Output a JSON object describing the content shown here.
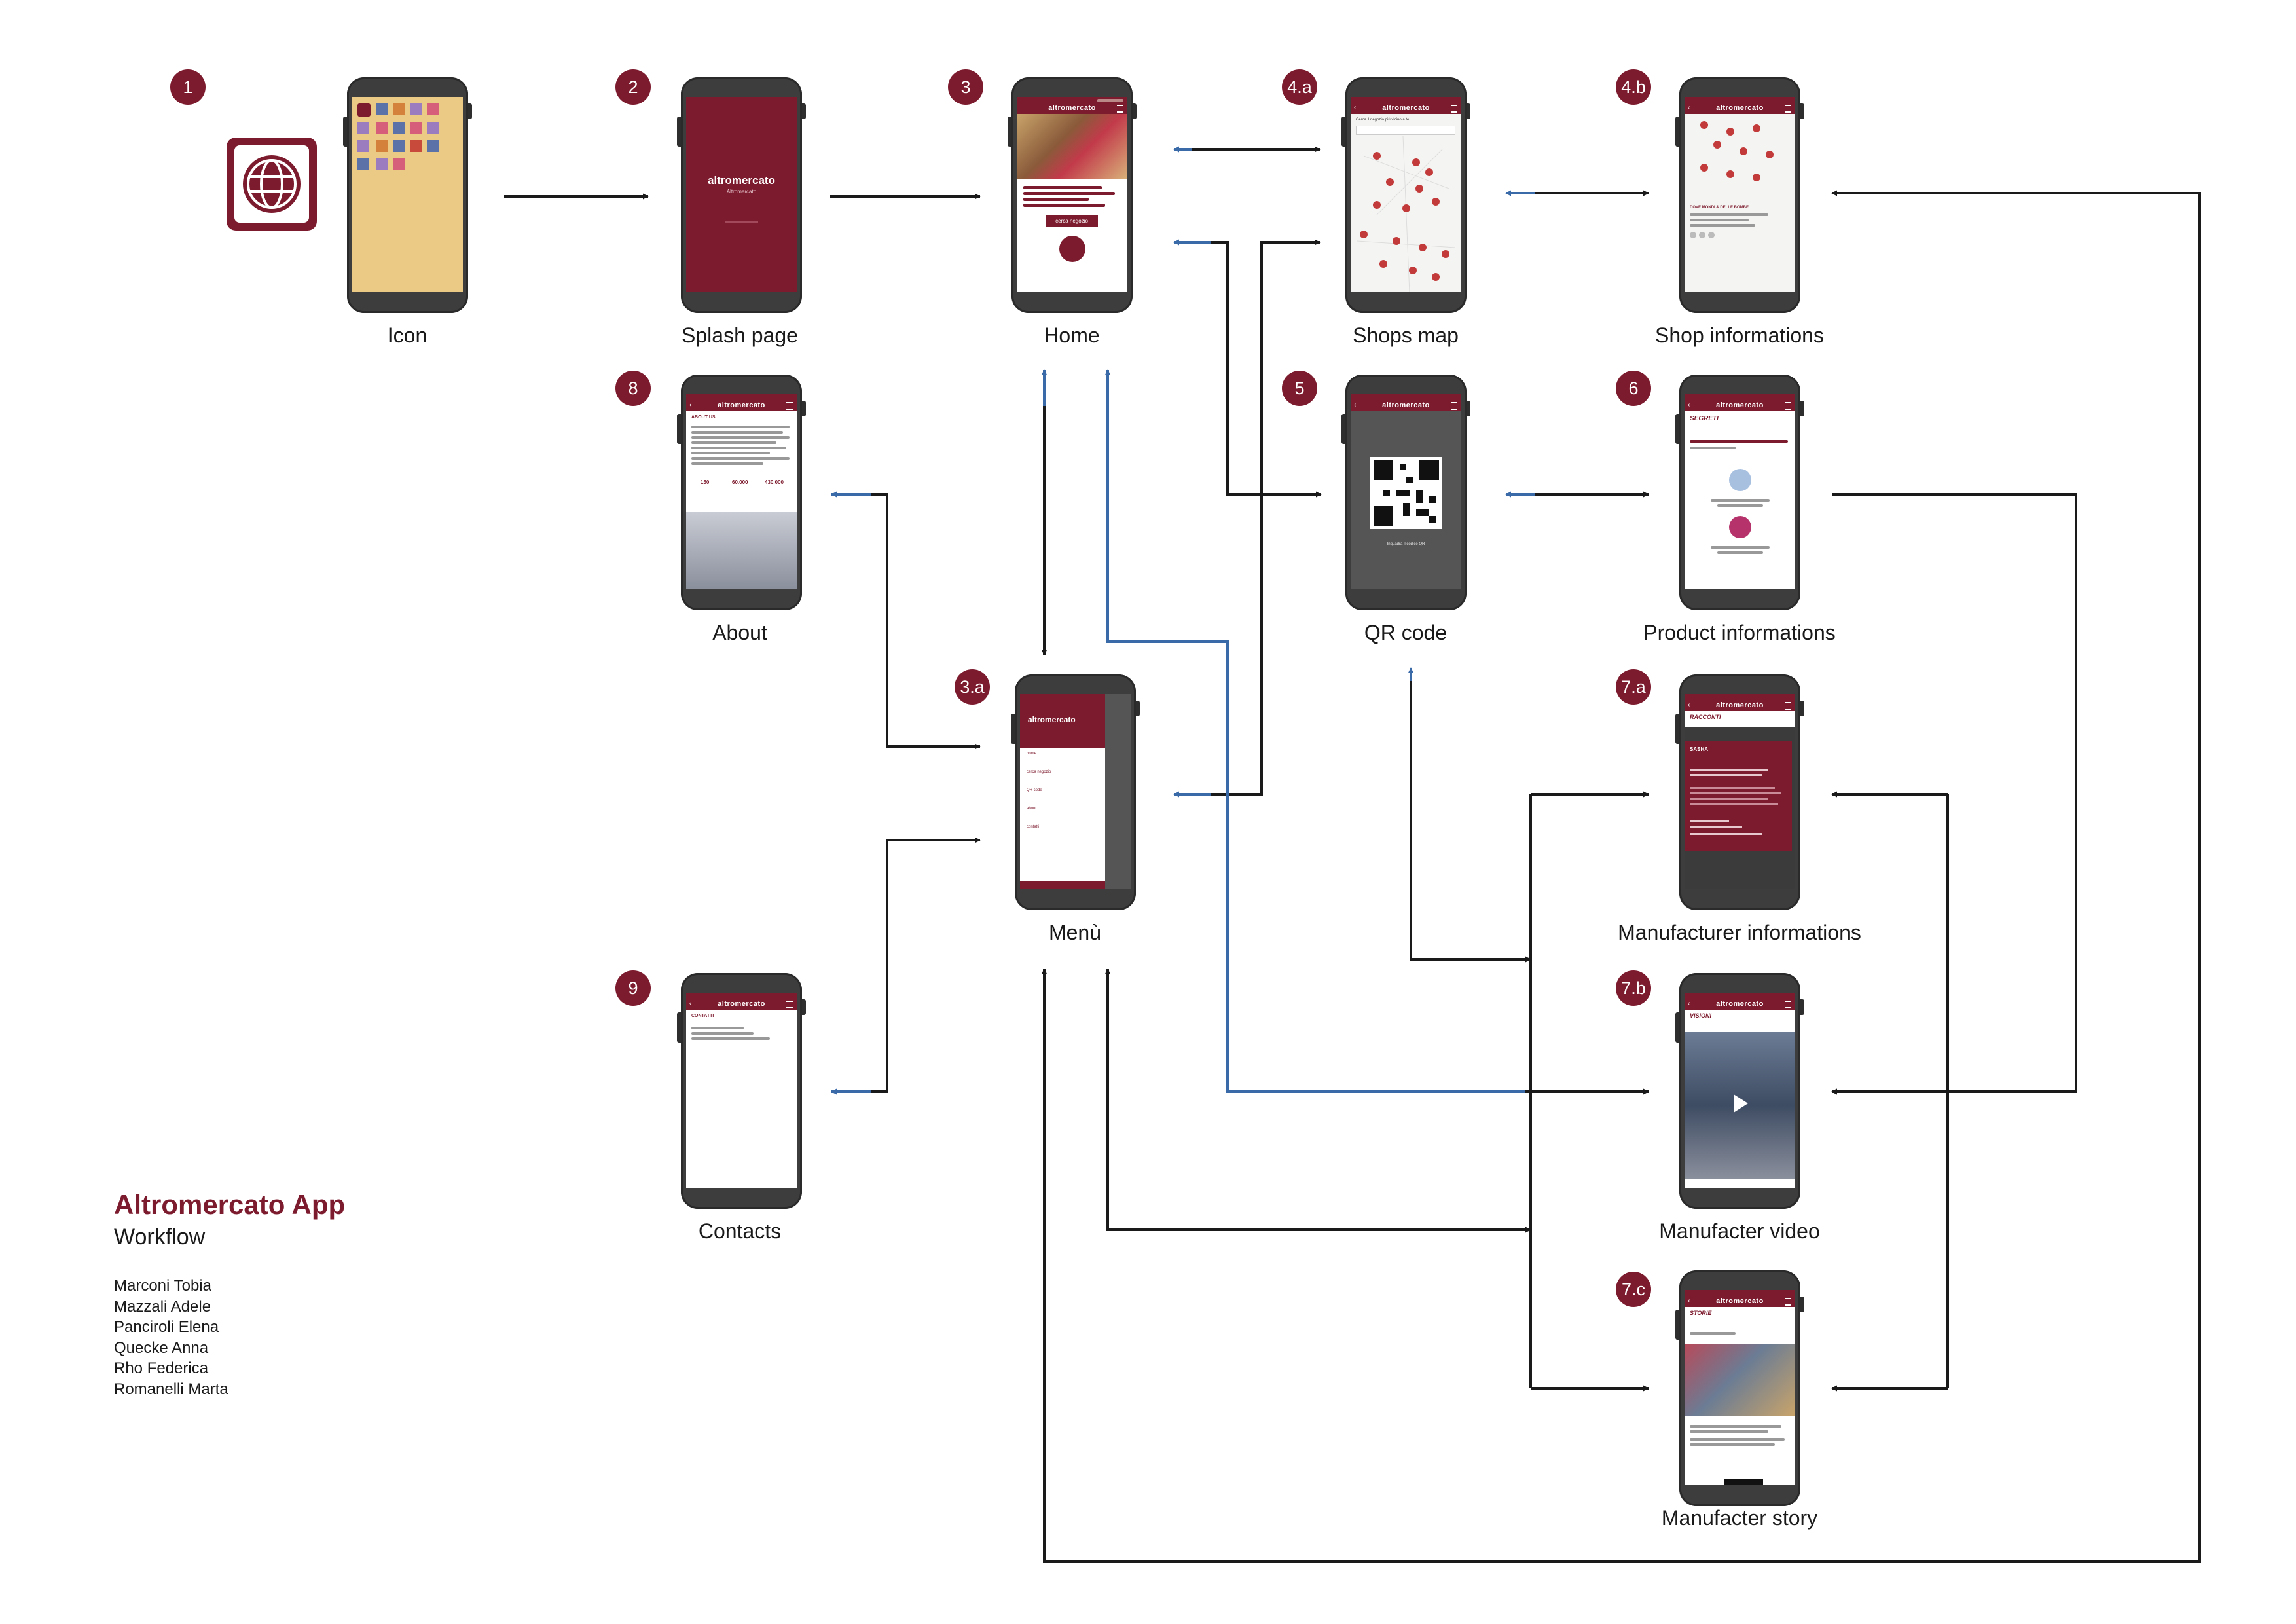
{
  "header": {
    "title": "Altromercato App",
    "subtitle": "Workflow"
  },
  "authors": [
    "Marconi Tobia",
    "Mazzali Adele",
    "Panciroli Elena",
    "Quecke Anna",
    "Rho Federica",
    "Romanelli Marta"
  ],
  "colors": {
    "accent": "#7d1b2e",
    "arrow_dark": "#1a1a1a",
    "arrow_blue": "#3a6aa8",
    "icon_yellow": "#ebca86"
  },
  "brand": {
    "logo_text": "altromercato",
    "splash_subtitle": "Altromercato"
  },
  "screens": [
    {
      "step": "1",
      "caption": "Icon"
    },
    {
      "step": "2",
      "caption": "Splash page"
    },
    {
      "step": "3",
      "caption": "Home"
    },
    {
      "step": "4.a",
      "caption": "Shops map"
    },
    {
      "step": "4.b",
      "caption": "Shop informations"
    },
    {
      "step": "5",
      "caption": "QR code"
    },
    {
      "step": "6",
      "caption": "Product informations"
    },
    {
      "step": "8",
      "caption": "About"
    },
    {
      "step": "3.a",
      "caption": "Menù"
    },
    {
      "step": "7.a",
      "caption": "Manufacturer informations"
    },
    {
      "step": "9",
      "caption": "Contacts"
    },
    {
      "step": "7.b",
      "caption": "Manufacter video"
    },
    {
      "step": "7.c",
      "caption": "Manufacter story"
    }
  ],
  "screen_text": {
    "home_button": "cerca negozio",
    "map_search": "Cerca il negozio più vicino a te",
    "shop_name": "DOVE MONDI & DELLE BOMBE",
    "about_heading": "ABOUT US",
    "about_stats": [
      {
        "value": "150",
        "label": ""
      },
      {
        "value": "60.000",
        "label": ""
      },
      {
        "value": "430.000",
        "label": ""
      }
    ],
    "product_heading": "SEGRETI",
    "qr_hint": "Inquadra il codice QR",
    "menu_items": [
      "home",
      "cerca negozio",
      "QR code",
      "about",
      "contatti"
    ],
    "manufacturer_heading": "RACCONTI",
    "manufacturer_name": "SASHA",
    "contacts_heading": "CONTATTI",
    "video_heading": "VISIONI",
    "story_heading": "STORIE"
  }
}
